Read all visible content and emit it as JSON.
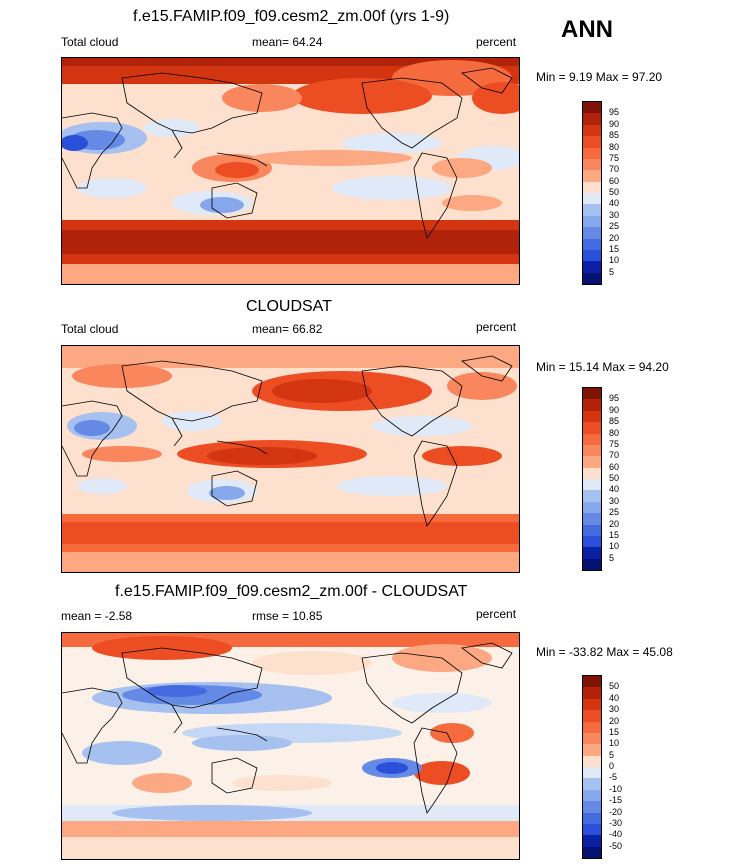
{
  "season": "ANN",
  "colors": {
    "pos_ramp": [
      "#fde0cd",
      "#fcc8aa",
      "#fba883",
      "#f9865c",
      "#f66b3e",
      "#ee4f24",
      "#df3a14",
      "#c42b0c",
      "#a8200a",
      "#7f1404"
    ],
    "neg_ramp": [
      "#dfe9f8",
      "#c4d7f4",
      "#a6c1f0",
      "#86a7ec",
      "#648ae6",
      "#446ae0",
      "#2a4fd8",
      "#1a37c8",
      "#0c20a6",
      "#061070"
    ],
    "neutral": "#fbf1e8"
  },
  "panels": [
    {
      "title": "f.e15.FAMIP.f09_f09.cesm2_zm.00f (yrs 1-9)",
      "left_label": "Total cloud",
      "center_label": "mean=  64.24",
      "right_label": "percent",
      "minmax": "Min =   9.19 Max =  97.20",
      "ticks": [
        "95",
        "90",
        "85",
        "80",
        "75",
        "70",
        "60",
        "50",
        "40",
        "30",
        "25",
        "20",
        "15",
        "10",
        "5"
      ],
      "bins_top_down": [
        "#7f1404",
        "#b0220a",
        "#d23510",
        "#ec4d23",
        "#f66b3e",
        "#f9865c",
        "#fba883",
        "#fde0cd",
        "#dfe9f8",
        "#a6c1f0",
        "#86a7ec",
        "#648ae6",
        "#446ae0",
        "#2a4fd8",
        "#0c20a6",
        "#061070"
      ]
    },
    {
      "title": "CLOUDSAT",
      "left_label": "Total cloud",
      "center_label": "mean=  66.82",
      "right_label": "percent",
      "minmax": "Min =  15.14 Max =  94.20",
      "ticks": [
        "95",
        "90",
        "85",
        "80",
        "75",
        "70",
        "60",
        "50",
        "40",
        "30",
        "25",
        "20",
        "15",
        "10",
        "5"
      ],
      "bins_top_down": [
        "#7f1404",
        "#b0220a",
        "#d23510",
        "#ec4d23",
        "#f66b3e",
        "#f9865c",
        "#fba883",
        "#fde0cd",
        "#dfe9f8",
        "#a6c1f0",
        "#86a7ec",
        "#648ae6",
        "#446ae0",
        "#2a4fd8",
        "#0c20a6",
        "#061070"
      ]
    },
    {
      "title": "f.e15.FAMIP.f09_f09.cesm2_zm.00f - CLOUDSAT",
      "left_label": "mean =  -2.58",
      "center_label": "rmse =  10.85",
      "right_label": "percent",
      "minmax": "Min = -33.82 Max =  45.08",
      "ticks": [
        "50",
        "40",
        "30",
        "20",
        "15",
        "10",
        "5",
        "0",
        "-5",
        "-10",
        "-15",
        "-20",
        "-30",
        "-40",
        "-50"
      ],
      "bins_top_down": [
        "#7f1404",
        "#b0220a",
        "#d23510",
        "#ec4d23",
        "#f66b3e",
        "#f9865c",
        "#fba883",
        "#fde0cd",
        "#dfe9f8",
        "#a6c1f0",
        "#86a7ec",
        "#648ae6",
        "#446ae0",
        "#2a4fd8",
        "#0c20a6",
        "#061070"
      ]
    }
  ]
}
